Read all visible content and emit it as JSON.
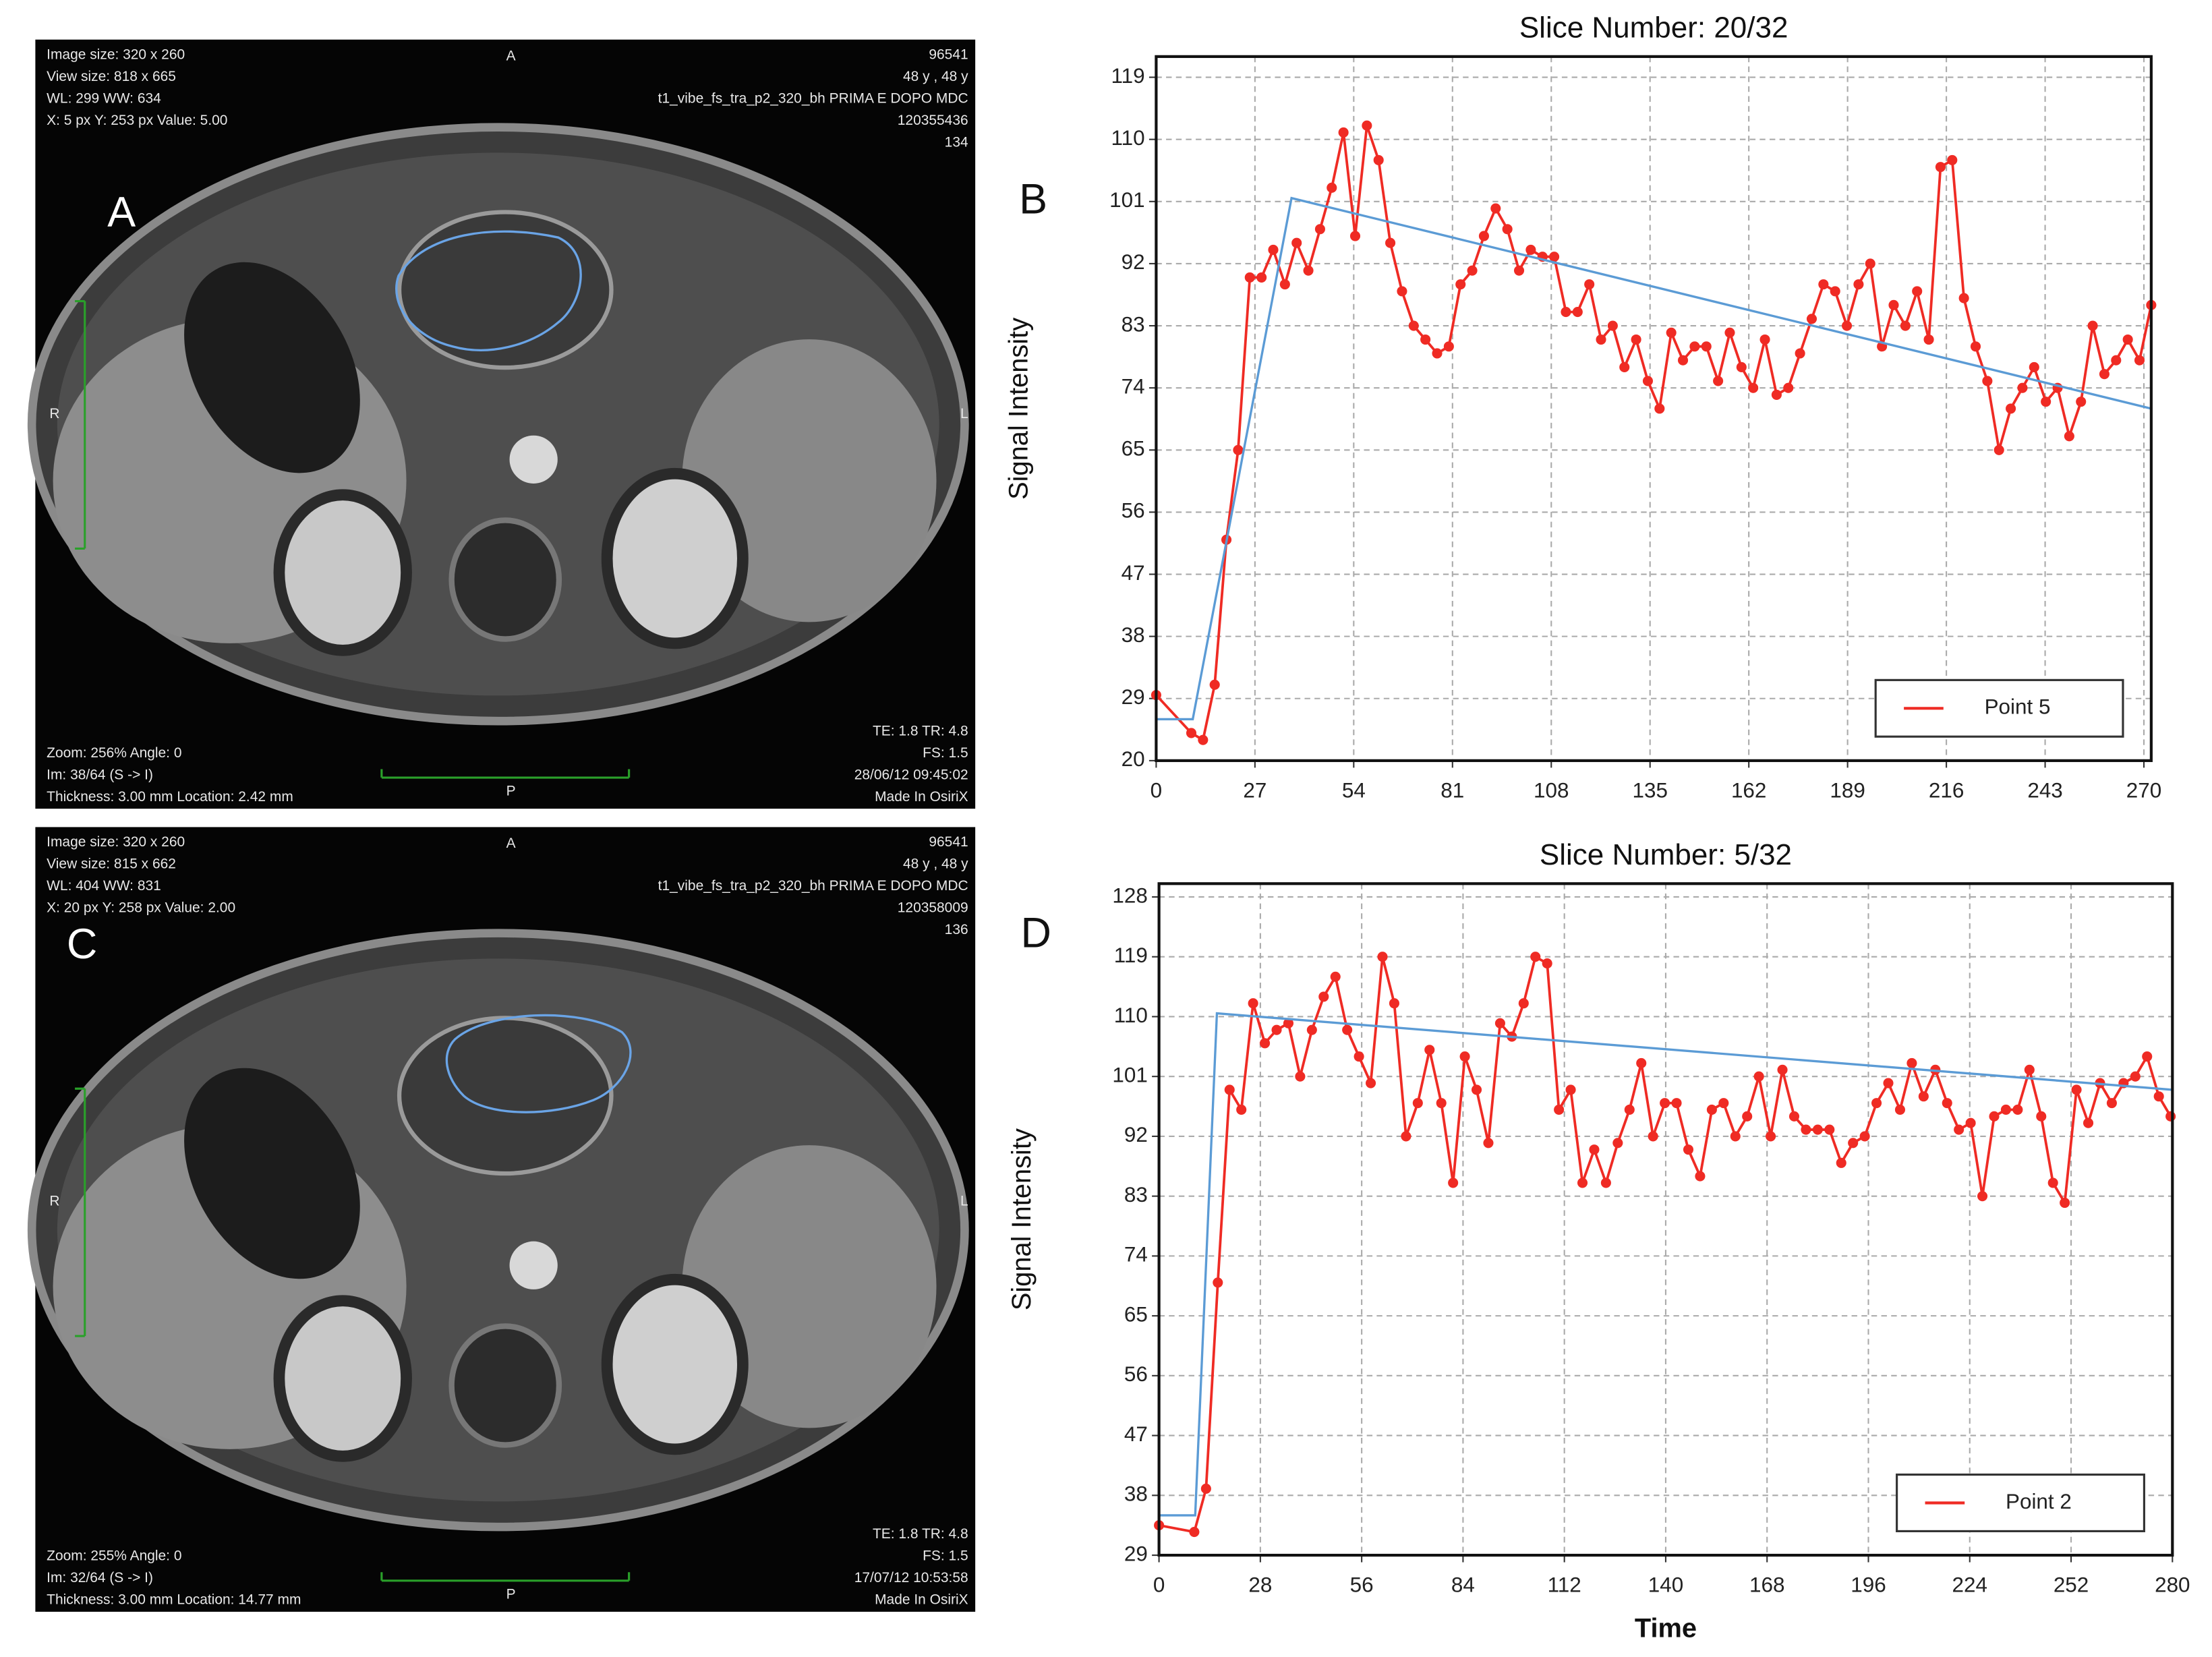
{
  "images": [
    {
      "panel_label": "A",
      "orientation": {
        "top": "A",
        "bottom": "P",
        "left": "R",
        "right": "L"
      },
      "top_left": [
        "Image size: 320 x 260",
        "View size: 818 x 665",
        "WL: 299 WW: 634",
        "X: 5 px Y: 253 px Value: 5.00"
      ],
      "top_right": [
        "96541",
        "48 y , 48 y",
        "t1_vibe_fs_tra_p2_320_bh PRIMA E DOPO MDC",
        "120355436",
        "134"
      ],
      "bottom_left": [
        "Zoom: 256% Angle: 0",
        "Im: 38/64 (S -> I)",
        "Thickness: 3.00 mm Location: 2.42 mm"
      ],
      "bottom_right": [
        "TE: 1.8 TR: 4.8",
        "FS: 1.5",
        "28/06/12 09:45:02",
        "Made In OsiriX"
      ]
    },
    {
      "panel_label": "C",
      "orientation": {
        "top": "A",
        "bottom": "P",
        "left": "R",
        "right": "L"
      },
      "top_left": [
        "Image size: 320 x 260",
        "View size: 815 x 662",
        "WL: 404 WW: 831",
        "X: 20 px Y: 258 px Value: 2.00"
      ],
      "top_right": [
        "96541",
        "48 y , 48 y",
        "t1_vibe_fs_tra_p2_320_bh PRIMA E DOPO MDC",
        "120358009",
        "136"
      ],
      "bottom_left": [
        "Zoom: 255% Angle: 0",
        "Im: 32/64 (S -> I)",
        "Thickness: 3.00 mm Location: 14.77 mm"
      ],
      "bottom_right": [
        "TE: 1.8 TR: 4.8",
        "FS: 1.5",
        "17/07/12 10:53:58",
        "Made In OsiriX"
      ]
    }
  ],
  "chart_data": [
    {
      "type": "line",
      "panel_label": "B",
      "title": "Slice Number: 20/32",
      "y_label": "Signal Intensity",
      "xlim": [
        0,
        272
      ],
      "xticks": [
        0,
        27,
        54,
        81,
        108,
        135,
        162,
        189,
        216,
        243,
        270
      ],
      "ylim": [
        20,
        122
      ],
      "yticks": [
        20,
        29,
        38,
        47,
        56,
        65,
        74,
        83,
        92,
        101,
        110,
        119
      ],
      "grid": true,
      "legend": "lower right",
      "series": [
        {
          "name": "Point 5",
          "color": "#ef2b24",
          "markers": true,
          "x": [
            0,
            9.6,
            12.8,
            16,
            19.2,
            22.4,
            25.6,
            28.8,
            32,
            35.2,
            38.4,
            41.6,
            44.8,
            48,
            51.2,
            54.4,
            57.6,
            60.8,
            64,
            67.2,
            70.4,
            73.6,
            76.8,
            80,
            83.2,
            86.4,
            89.6,
            92.8,
            96,
            99.2,
            102.4,
            105.6,
            108.8,
            112,
            115.2,
            118.4,
            121.6,
            124.8,
            128,
            131.2,
            134.4,
            137.6,
            140.8,
            144,
            147.2,
            150.4,
            153.6,
            156.8,
            160,
            163.2,
            166.4,
            169.6,
            172.8,
            176,
            179.2,
            182.4,
            185.6,
            188.8,
            192,
            195.2,
            198.4,
            201.6,
            204.8,
            208,
            211.2,
            214.4,
            217.6,
            220.8,
            224,
            227.2,
            230.4,
            233.6,
            236.8,
            240,
            243.2,
            246.4,
            249.6,
            252.8,
            256,
            259.2,
            262.4,
            265.6,
            268.8,
            272
          ],
          "values": [
            29.5,
            24,
            23,
            31,
            52,
            65,
            90,
            90,
            94,
            89,
            95,
            91,
            97,
            103,
            111,
            96,
            112,
            107,
            95,
            88,
            83,
            81,
            79,
            80,
            89,
            91,
            96,
            100,
            97,
            91,
            94,
            93,
            93,
            85,
            85,
            89,
            81,
            83,
            77,
            81,
            75,
            71,
            82,
            78,
            80,
            80,
            75,
            82,
            77,
            74,
            81,
            73,
            74,
            79,
            84,
            89,
            88,
            83,
            89,
            92,
            80,
            86,
            83,
            88,
            81,
            106,
            107,
            87,
            80,
            75,
            65,
            71,
            74,
            77,
            72,
            74,
            67,
            72,
            83,
            76,
            78,
            81,
            78,
            86
          ]
        },
        {
          "color": "#5b9bd5",
          "markers": false,
          "x": [
            0,
            10,
            37,
            272
          ],
          "values": [
            26,
            26,
            101.5,
            71
          ]
        }
      ]
    },
    {
      "type": "line",
      "panel_label": "D",
      "title": "Slice Number: 5/32",
      "y_label": "Signal Intensity",
      "x_label": "Time",
      "xlim": [
        0,
        280
      ],
      "xticks": [
        0,
        28,
        56,
        84,
        112,
        140,
        168,
        196,
        224,
        252,
        280
      ],
      "ylim": [
        29,
        130
      ],
      "yticks": [
        29,
        38,
        47,
        56,
        65,
        74,
        83,
        92,
        101,
        110,
        119,
        128
      ],
      "grid": true,
      "legend": "lower right",
      "series": [
        {
          "name": "Point 2",
          "color": "#ef2b24",
          "markers": true,
          "x": [
            0,
            9.75,
            13,
            16.25,
            19.5,
            22.75,
            26,
            29.25,
            32.5,
            35.75,
            39,
            42.25,
            45.5,
            48.75,
            52,
            55.25,
            58.5,
            61.75,
            65,
            68.25,
            71.5,
            74.75,
            78,
            81.25,
            84.5,
            87.75,
            91,
            94.25,
            97.5,
            100.75,
            104,
            107.25,
            110.5,
            113.75,
            117,
            120.25,
            123.5,
            126.75,
            130,
            133.25,
            136.5,
            139.75,
            143,
            146.25,
            149.5,
            152.75,
            156,
            159.25,
            162.5,
            165.75,
            169,
            172.25,
            175.5,
            178.75,
            182,
            185.25,
            188.5,
            191.75,
            195,
            198.25,
            201.5,
            204.75,
            208,
            211.25,
            214.5,
            217.75,
            221,
            224.25,
            227.5,
            230.75,
            234,
            237.25,
            240.5,
            243.75,
            247,
            250.25,
            253.5,
            256.75,
            260,
            263.25,
            266.5,
            269.75,
            273,
            276.25,
            279.5
          ],
          "values": [
            33.5,
            32.5,
            39,
            70,
            99,
            96,
            112,
            106,
            108,
            109,
            101,
            108,
            113,
            116,
            108,
            104,
            100,
            119,
            112,
            92,
            97,
            105,
            97,
            85,
            104,
            99,
            91,
            109,
            107,
            112,
            119,
            118,
            96,
            99,
            85,
            90,
            85,
            91,
            96,
            103,
            92,
            97,
            97,
            90,
            86,
            96,
            97,
            92,
            95,
            101,
            92,
            102,
            95,
            93,
            93,
            93,
            88,
            91,
            92,
            97,
            100,
            96,
            103,
            98,
            102,
            97,
            93,
            94,
            83,
            95,
            96,
            96,
            102,
            95,
            85,
            82,
            99,
            94,
            100,
            97,
            100,
            101,
            104,
            98,
            95
          ]
        },
        {
          "color": "#5b9bd5",
          "markers": false,
          "x": [
            0,
            10,
            16,
            280
          ],
          "values": [
            35,
            35,
            110.5,
            99
          ]
        }
      ]
    }
  ]
}
